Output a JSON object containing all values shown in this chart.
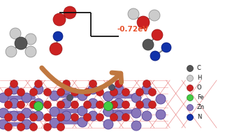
{
  "bg_color": "#ffffff",
  "energy_label": "-0.72eV",
  "energy_color": "#e8502a",
  "energy_fontsize": 7.5,
  "legend_items": [
    {
      "label": "C",
      "color": "#555555",
      "edge": "#333333"
    },
    {
      "label": "H",
      "color": "#cccccc",
      "edge": "#888888"
    },
    {
      "label": "O",
      "color": "#cc2222",
      "edge": "#991111"
    },
    {
      "label": "Fe",
      "color": "#44cc44",
      "edge": "#228822"
    },
    {
      "label": "Zn",
      "color": "#8877bb",
      "edge": "#554499"
    },
    {
      "label": "N",
      "color": "#1133aa",
      "edge": "#001177"
    }
  ],
  "arrow_color": "#c07840",
  "level_color": "#111111",
  "bond_color": "#777777",
  "surface_red_grid": "#dd4444",
  "surface_pink_grid": "#ee8888",
  "surface_lavender": "#9988cc",
  "zn_color": "#8877bb",
  "zn_edge": "#554499",
  "o_color": "#cc2222",
  "fe_color": "#44cc44",
  "fe_edge": "#228822",
  "c_color": "#555555",
  "n_color": "#1133aa",
  "h_color": "#cccccc",
  "h_edge": "#888888"
}
